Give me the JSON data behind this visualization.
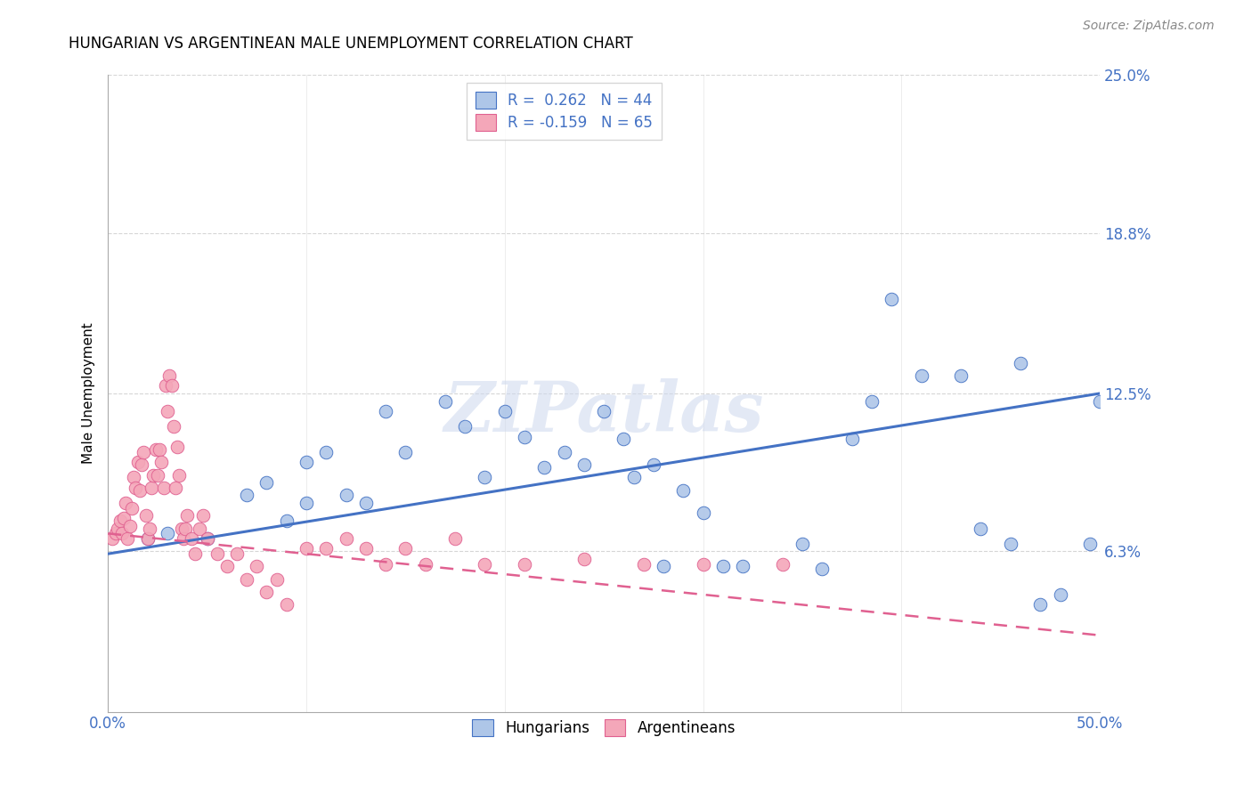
{
  "title": "HUNGARIAN VS ARGENTINEAN MALE UNEMPLOYMENT CORRELATION CHART",
  "source": "Source: ZipAtlas.com",
  "ylabel": "Male Unemployment",
  "xlim": [
    0.0,
    0.5
  ],
  "ylim": [
    0.0,
    0.25
  ],
  "ytick_vals": [
    0.063,
    0.125,
    0.188,
    0.25
  ],
  "ytick_labels": [
    "6.3%",
    "12.5%",
    "18.8%",
    "25.0%"
  ],
  "xtick_vals": [
    0.0,
    0.1,
    0.2,
    0.3,
    0.4,
    0.5
  ],
  "xtick_labels": [
    "0.0%",
    "",
    "",
    "",
    "",
    "50.0%"
  ],
  "hungarian_color": "#aec6e8",
  "argentinean_color": "#f4a7b9",
  "trend_hungarian_color": "#4472c4",
  "trend_argentinean_color": "#e06090",
  "r_hungarian": 0.262,
  "n_hungarian": 44,
  "r_argentinean": -0.159,
  "n_argentinean": 65,
  "watermark": "ZIPatlas",
  "hungarian_x": [
    0.02,
    0.03,
    0.05,
    0.07,
    0.08,
    0.09,
    0.1,
    0.1,
    0.11,
    0.12,
    0.13,
    0.14,
    0.15,
    0.17,
    0.18,
    0.19,
    0.2,
    0.21,
    0.22,
    0.23,
    0.24,
    0.25,
    0.26,
    0.265,
    0.275,
    0.28,
    0.29,
    0.3,
    0.31,
    0.32,
    0.35,
    0.36,
    0.375,
    0.385,
    0.395,
    0.41,
    0.43,
    0.44,
    0.455,
    0.46,
    0.47,
    0.48,
    0.495,
    0.5
  ],
  "hungarian_y": [
    0.068,
    0.07,
    0.068,
    0.085,
    0.09,
    0.075,
    0.082,
    0.098,
    0.102,
    0.085,
    0.082,
    0.118,
    0.102,
    0.122,
    0.112,
    0.092,
    0.118,
    0.108,
    0.096,
    0.102,
    0.097,
    0.118,
    0.107,
    0.092,
    0.097,
    0.057,
    0.087,
    0.078,
    0.057,
    0.057,
    0.066,
    0.056,
    0.107,
    0.122,
    0.162,
    0.132,
    0.132,
    0.072,
    0.066,
    0.137,
    0.042,
    0.046,
    0.066,
    0.122
  ],
  "argentinean_x": [
    0.002,
    0.004,
    0.005,
    0.006,
    0.007,
    0.008,
    0.009,
    0.01,
    0.011,
    0.012,
    0.013,
    0.014,
    0.015,
    0.016,
    0.017,
    0.018,
    0.019,
    0.02,
    0.021,
    0.022,
    0.023,
    0.024,
    0.025,
    0.026,
    0.027,
    0.028,
    0.029,
    0.03,
    0.031,
    0.032,
    0.033,
    0.034,
    0.035,
    0.036,
    0.037,
    0.038,
    0.039,
    0.04,
    0.042,
    0.044,
    0.046,
    0.048,
    0.05,
    0.055,
    0.06,
    0.065,
    0.07,
    0.075,
    0.08,
    0.085,
    0.09,
    0.1,
    0.11,
    0.12,
    0.13,
    0.14,
    0.15,
    0.16,
    0.175,
    0.19,
    0.21,
    0.24,
    0.27,
    0.3,
    0.34
  ],
  "argentinean_y": [
    0.068,
    0.07,
    0.072,
    0.075,
    0.07,
    0.076,
    0.082,
    0.068,
    0.073,
    0.08,
    0.092,
    0.088,
    0.098,
    0.087,
    0.097,
    0.102,
    0.077,
    0.068,
    0.072,
    0.088,
    0.093,
    0.103,
    0.093,
    0.103,
    0.098,
    0.088,
    0.128,
    0.118,
    0.132,
    0.128,
    0.112,
    0.088,
    0.104,
    0.093,
    0.072,
    0.068,
    0.072,
    0.077,
    0.068,
    0.062,
    0.072,
    0.077,
    0.068,
    0.062,
    0.057,
    0.062,
    0.052,
    0.057,
    0.047,
    0.052,
    0.042,
    0.064,
    0.064,
    0.068,
    0.064,
    0.058,
    0.064,
    0.058,
    0.068,
    0.058,
    0.058,
    0.06,
    0.058,
    0.058,
    0.058
  ]
}
